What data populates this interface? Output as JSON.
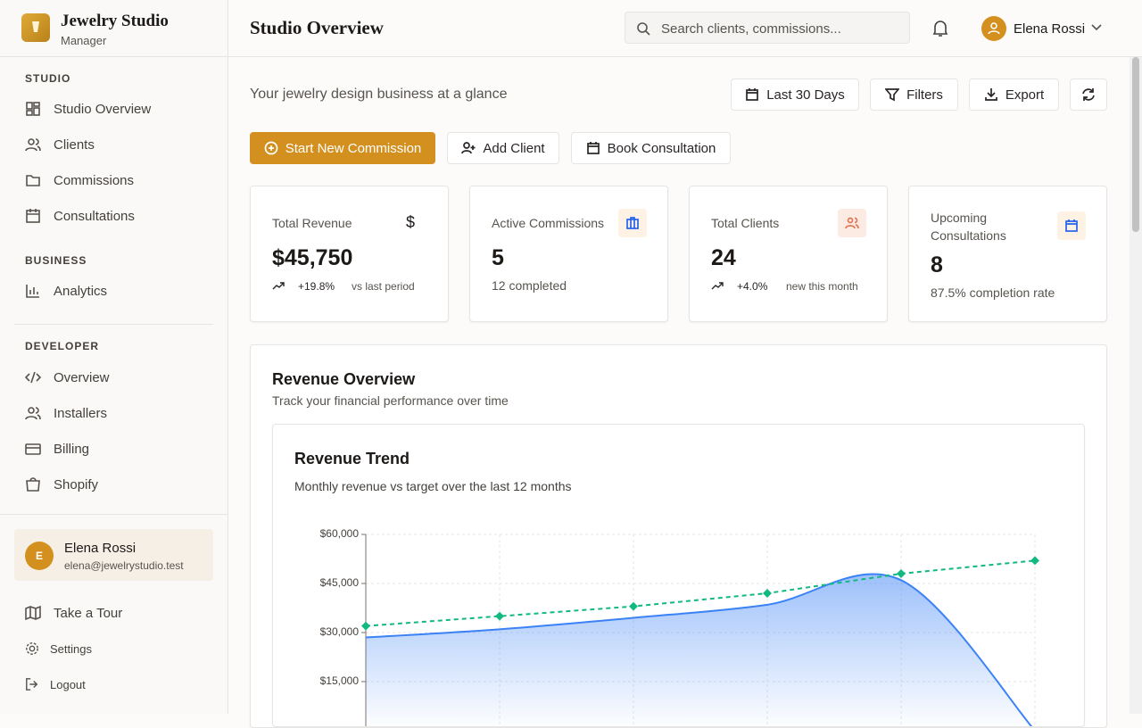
{
  "brand": {
    "name": "Jewelry Studio",
    "subtitle": "Manager"
  },
  "header": {
    "title": "Studio Overview",
    "search_placeholder": "Search clients, commissions...",
    "user": "Elena Rossi"
  },
  "sidebar": {
    "sections": [
      {
        "label": "STUDIO",
        "items": [
          "Studio Overview",
          "Clients",
          "Commissions",
          "Consultations"
        ]
      },
      {
        "label": "BUSINESS",
        "items": [
          "Analytics"
        ]
      },
      {
        "label": "DEVELOPER",
        "items": [
          "Overview",
          "Installers",
          "Billing",
          "Shopify"
        ]
      }
    ],
    "user": {
      "initial": "E",
      "name": "Elena Rossi",
      "email": "elena@jewelrystudio.test"
    },
    "footer_items": [
      "Take a Tour",
      "Settings",
      "Logout"
    ]
  },
  "toolbar": {
    "subtitle": "Your jewelry design business at a glance",
    "buttons": [
      "Last 30 Days",
      "Filters",
      "Export"
    ]
  },
  "actions": [
    "Start New Commission",
    "Add Client",
    "Book Consultation"
  ],
  "stats": [
    {
      "label": "Total Revenue",
      "value": "$45,750",
      "change": "+19.8%",
      "note": "vs last period"
    },
    {
      "label": "Active Commissions",
      "value": "5",
      "note": "12 completed"
    },
    {
      "label": "Total Clients",
      "value": "24",
      "change": "+4.0%",
      "note": "new this month"
    },
    {
      "label": "Upcoming Consultations",
      "value": "8",
      "note": "87.5% completion rate"
    }
  ],
  "revenue_overview": {
    "title": "Revenue Overview",
    "subtitle": "Track your financial performance over time"
  },
  "chart_data": {
    "type": "area",
    "title": "Revenue Trend",
    "subtitle": "Monthly revenue vs target over the last 12 months",
    "categories": [
      null,
      null,
      null,
      null,
      null,
      null
    ],
    "series": [
      {
        "color": "#3b82f6",
        "style": "area",
        "values": [
          28500,
          31000,
          34500,
          38500,
          46000,
          0
        ]
      },
      {
        "color": "#10b981",
        "style": "dashed",
        "values": [
          32000,
          35000,
          38000,
          42000,
          48000,
          52000
        ]
      }
    ],
    "ylim": [
      0,
      60000
    ],
    "yticks": [
      {
        "value": 15000,
        "label": "$15,000"
      },
      {
        "value": 30000,
        "label": "$30,000"
      },
      {
        "value": 45000,
        "label": "$45,000"
      },
      {
        "value": 60000,
        "label": "$60,000"
      }
    ],
    "grid": true
  }
}
